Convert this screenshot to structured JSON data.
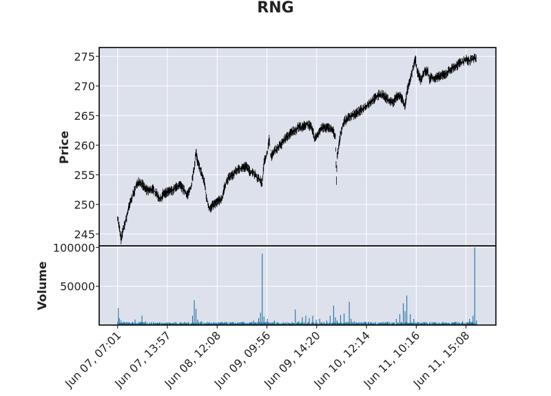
{
  "chart_data": {
    "type": "candlestick",
    "title": "RNG",
    "price_panel": {
      "ylabel": "Price",
      "ylim": [
        243,
        276.5
      ],
      "yticks": [
        245,
        250,
        255,
        260,
        265,
        270,
        275
      ],
      "series": [
        {
          "color": "#000000",
          "points": [
            [
              0,
              248
            ],
            [
              0.5,
              246
            ],
            [
              1,
              244
            ],
            [
              1.5,
              245.5
            ],
            [
              2,
              246.5
            ],
            [
              2.5,
              247.5
            ],
            [
              3,
              249
            ],
            [
              4,
              251
            ],
            [
              5,
              252.5
            ],
            [
              6,
              254
            ],
            [
              7,
              253.5
            ],
            [
              8,
              252.5
            ],
            [
              9,
              252.3
            ],
            [
              10,
              252.6
            ],
            [
              11,
              252
            ],
            [
              12,
              251
            ],
            [
              12.5,
              250.8
            ],
            [
              13,
              251.8
            ],
            [
              14,
              252
            ],
            [
              15,
              252.2
            ],
            [
              16,
              252.4
            ],
            [
              17,
              253
            ],
            [
              18,
              253.2
            ],
            [
              19,
              252.4
            ],
            [
              20,
              251.6
            ],
            [
              21,
              252.8
            ],
            [
              22,
              256
            ],
            [
              22.5,
              259
            ],
            [
              23,
              257
            ],
            [
              24,
              255.5
            ],
            [
              25,
              253.5
            ],
            [
              25.5,
              251
            ],
            [
              26,
              250
            ],
            [
              26.5,
              249.2
            ],
            [
              27,
              249.6
            ],
            [
              28,
              250.2
            ],
            [
              29,
              250.6
            ],
            [
              30,
              251
            ],
            [
              30.5,
              252.5
            ],
            [
              31,
              253.5
            ],
            [
              32,
              254.5
            ],
            [
              33,
              255
            ],
            [
              34,
              255.6
            ],
            [
              35,
              256
            ],
            [
              36,
              256.3
            ],
            [
              37,
              256.4
            ],
            [
              38,
              255.5
            ],
            [
              39,
              255.4
            ],
            [
              40,
              254.6
            ],
            [
              41,
              254
            ],
            [
              41.5,
              253.5
            ],
            [
              42,
              257
            ],
            [
              43,
              259
            ],
            [
              43.5,
              261
            ],
            [
              44,
              258
            ],
            [
              45,
              259
            ],
            [
              46,
              259.5
            ],
            [
              47,
              260.2
            ],
            [
              48,
              261
            ],
            [
              49,
              261.6
            ],
            [
              50,
              262.3
            ],
            [
              51,
              262.5
            ],
            [
              52,
              263.2
            ],
            [
              53,
              263
            ],
            [
              54,
              263.5
            ],
            [
              55,
              263.4
            ],
            [
              56,
              262.5
            ],
            [
              56.5,
              261
            ],
            [
              57,
              261.5
            ],
            [
              58,
              262.5
            ],
            [
              59,
              263
            ],
            [
              60,
              263
            ],
            [
              61,
              262.8
            ],
            [
              62,
              262.3
            ],
            [
              62.5,
              261.5
            ],
            [
              62.8,
              254
            ],
            [
              63,
              258
            ],
            [
              63.5,
              260
            ],
            [
              64,
              262
            ],
            [
              64.5,
              263
            ],
            [
              65,
              264
            ],
            [
              66,
              264.5
            ],
            [
              67,
              265
            ],
            [
              68,
              265.2
            ],
            [
              69,
              265.6
            ],
            [
              70,
              266
            ],
            [
              71,
              266.4
            ],
            [
              72,
              267
            ],
            [
              73,
              267.5
            ],
            [
              74,
              268
            ],
            [
              75,
              268.5
            ],
            [
              76,
              268.6
            ],
            [
              77,
              268
            ],
            [
              78,
              267.5
            ],
            [
              79,
              267.2
            ],
            [
              80,
              268.2
            ],
            [
              81,
              268.4
            ],
            [
              82,
              267.5
            ],
            [
              82.5,
              266.5
            ],
            [
              83,
              269
            ],
            [
              84,
              271
            ],
            [
              85,
              273.5
            ],
            [
              85.5,
              274.5
            ],
            [
              86,
              272.5
            ],
            [
              87,
              271
            ],
            [
              87.5,
              271.5
            ],
            [
              88,
              272.5
            ],
            [
              89,
              272.5
            ],
            [
              89.5,
              271
            ],
            [
              90,
              271.6
            ],
            [
              91,
              271.3
            ],
            [
              92,
              271.5
            ],
            [
              93,
              271.8
            ],
            [
              94,
              272
            ],
            [
              95,
              272.5
            ],
            [
              96,
              273
            ],
            [
              97,
              273.3
            ],
            [
              98,
              273.8
            ],
            [
              99,
              274
            ],
            [
              100,
              274.5
            ],
            [
              101,
              274.2
            ],
            [
              102,
              274.6
            ],
            [
              103,
              274.8
            ]
          ]
        }
      ]
    },
    "volume_panel": {
      "ylabel": "Volume",
      "ylim": [
        0,
        102000
      ],
      "yticks": [
        50000,
        100000
      ],
      "color": "#1f6f9e",
      "spikes": [
        [
          0.2,
          22000
        ],
        [
          0.5,
          9000
        ],
        [
          1,
          6000
        ],
        [
          2,
          4000
        ],
        [
          5,
          7000
        ],
        [
          7,
          12000
        ],
        [
          8,
          5000
        ],
        [
          13,
          3000
        ],
        [
          18,
          3500
        ],
        [
          21.5,
          12000
        ],
        [
          22,
          32000
        ],
        [
          22.5,
          21000
        ],
        [
          23,
          7000
        ],
        [
          24,
          5000
        ],
        [
          27,
          3000
        ],
        [
          30,
          4000
        ],
        [
          33,
          3500
        ],
        [
          36,
          4000
        ],
        [
          39,
          6000
        ],
        [
          40.5,
          9000
        ],
        [
          41,
          16000
        ],
        [
          41.5,
          92000
        ],
        [
          42,
          11000
        ],
        [
          43,
          8000
        ],
        [
          45,
          6000
        ],
        [
          46,
          4000
        ],
        [
          50,
          4000
        ],
        [
          51,
          20000
        ],
        [
          52,
          5000
        ],
        [
          53,
          10000
        ],
        [
          54,
          12000
        ],
        [
          55,
          9000
        ],
        [
          56,
          12000
        ],
        [
          57,
          7000
        ],
        [
          58,
          8000
        ],
        [
          60,
          6000
        ],
        [
          61,
          12000
        ],
        [
          62,
          25000
        ],
        [
          62.5,
          10000
        ],
        [
          63,
          6000
        ],
        [
          64,
          13000
        ],
        [
          65,
          15000
        ],
        [
          66.5,
          30000
        ],
        [
          67,
          8000
        ],
        [
          68,
          5000
        ],
        [
          71,
          4000
        ],
        [
          74,
          3500
        ],
        [
          77,
          4000
        ],
        [
          80,
          8000
        ],
        [
          81,
          14000
        ],
        [
          82,
          28000
        ],
        [
          82.5,
          18000
        ],
        [
          83,
          38000
        ],
        [
          84,
          14000
        ],
        [
          85,
          8000
        ],
        [
          86,
          4000
        ],
        [
          88,
          3000
        ],
        [
          91,
          3000
        ],
        [
          94,
          3000
        ],
        [
          97,
          4000
        ],
        [
          99,
          5000
        ],
        [
          101,
          8000
        ],
        [
          102,
          12000
        ],
        [
          102.5,
          100000
        ],
        [
          103,
          6000
        ]
      ]
    },
    "xaxis": {
      "ticks": [
        {
          "label": "Jun 07, 07:01",
          "value": 0
        },
        {
          "label": "Jun 07, 13:57",
          "value": 10
        },
        {
          "label": "Jun 08, 12:08",
          "value": 20
        },
        {
          "label": "Jun 09, 09:56",
          "value": 30
        },
        {
          "label": "Jun 09, 14:20",
          "value": 40
        },
        {
          "label": "Jun 10, 12:14",
          "value": 50
        },
        {
          "label": "Jun 11, 10:16",
          "value": 60
        },
        {
          "label": "Jun 11, 15:08",
          "value": 70
        }
      ],
      "xlim": [
        -3.7,
        76
      ]
    },
    "grid": true,
    "style": {
      "panel_bg": "#dce1ec",
      "grid_color": "#ffffff",
      "axis_color": "#000000"
    }
  }
}
